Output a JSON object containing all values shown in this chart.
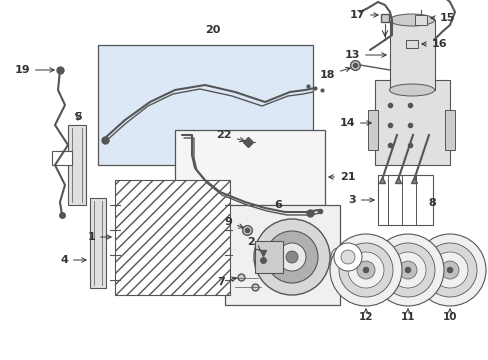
{
  "bg_color": "#ffffff",
  "lc": "#333333",
  "pc": "#555555",
  "box20_fill": "#dce8f5",
  "box21_fill": "#f5f5f5",
  "box6_fill": "#f0f0f0",
  "figsize": [
    4.89,
    3.6
  ],
  "dpi": 100,
  "xlim": [
    0,
    489
  ],
  "ylim": [
    0,
    360
  ]
}
